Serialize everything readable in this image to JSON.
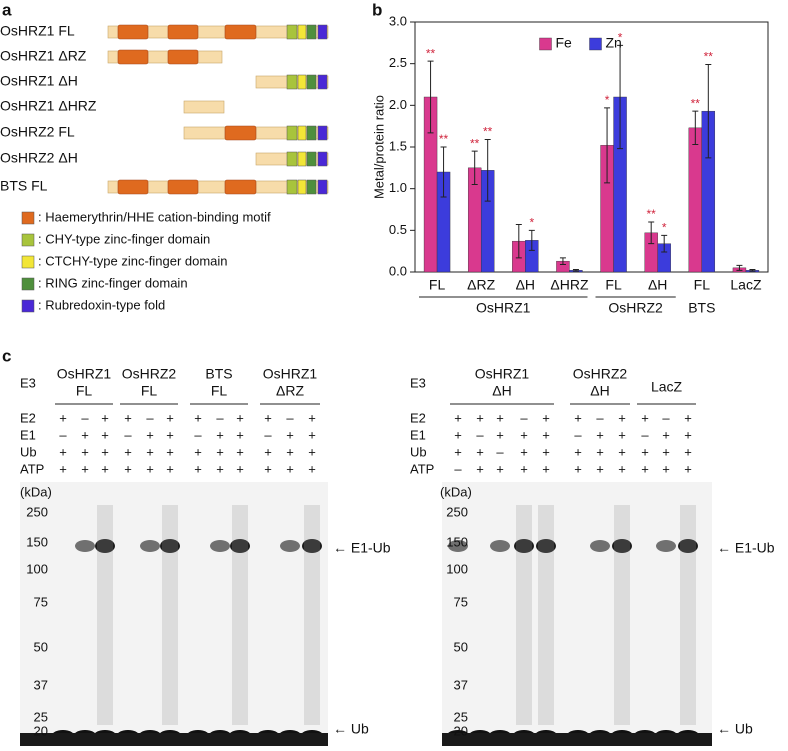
{
  "panel_labels": [
    "a",
    "b",
    "c"
  ],
  "constructs": {
    "names": [
      "OsHRZ1 FL",
      "OsHRZ1 ΔRZ",
      "OsHRZ1 ΔH",
      "OsHRZ1 ΔHRZ",
      "OsHRZ2 FL",
      "OsHRZ2 ΔH",
      "BTS FL"
    ],
    "legend": [
      {
        "label": ": Haemerythrin/HHE cation-binding motif",
        "color": "#df6a1f"
      },
      {
        "label": ": CHY-type zinc-finger domain",
        "color": "#a8c43c"
      },
      {
        "label": ": CTCHY-type zinc-finger domain",
        "color": "#f2e637"
      },
      {
        "label": ": RING zinc-finger domain",
        "color": "#4e8f3c"
      },
      {
        "label": ": Rubredoxin-type fold",
        "color": "#4a28d6"
      }
    ]
  },
  "chart_data": {
    "type": "bar",
    "ylabel": "Metal/protein ratio",
    "groups": [
      {
        "name": "OsHRZ1",
        "categories": [
          "FL",
          "ΔRZ",
          "ΔH",
          "ΔHRZ"
        ]
      },
      {
        "name": "OsHRZ2",
        "categories": [
          "FL",
          "ΔH"
        ]
      },
      {
        "name": "BTS",
        "categories": [
          "FL"
        ]
      },
      {
        "name": null,
        "categories": [
          "LacZ"
        ]
      }
    ],
    "series": [
      {
        "name": "Fe",
        "color": "#d9398e",
        "values": [
          2.1,
          1.25,
          0.37,
          0.13,
          1.52,
          0.47,
          1.73,
          0.05
        ],
        "errors": [
          0.43,
          0.2,
          0.2,
          0.04,
          0.45,
          0.13,
          0.2,
          0.03
        ],
        "significance": [
          "**",
          "**",
          null,
          null,
          "*",
          "**",
          "**",
          null
        ]
      },
      {
        "name": "Zn",
        "color": "#3c3cdc",
        "values": [
          1.2,
          1.22,
          0.38,
          0.02,
          2.1,
          0.34,
          1.93,
          0.02
        ],
        "errors": [
          0.3,
          0.37,
          0.12,
          0.01,
          0.62,
          0.1,
          0.56,
          0.01
        ],
        "significance": [
          "**",
          "**",
          "*",
          null,
          "*",
          "*",
          "**",
          null
        ]
      }
    ],
    "significance_color": "#d0243c",
    "ylim": [
      0,
      3
    ],
    "yticks": [
      {
        "value": 0,
        "label": "0.0"
      },
      0.5,
      {
        "value": 1,
        "label": "1.0"
      },
      1.5,
      {
        "value": 2,
        "label": "2.0"
      },
      2.5,
      {
        "value": 3,
        "label": "3.0"
      }
    ],
    "legend": "upper center",
    "grid": false
  },
  "blots": [
    {
      "e3_label": "E3",
      "e3": [
        {
          "name": "OsHRZ1",
          "variant": "FL"
        },
        {
          "name": "OsHRZ2",
          "variant": "FL"
        },
        {
          "name": "BTS",
          "variant": "FL"
        },
        {
          "name": "OsHRZ1",
          "variant": "ΔRZ"
        }
      ],
      "rows": [
        {
          "label": "E2",
          "signs": [
            "+",
            "–",
            "+",
            "+",
            "–",
            "+",
            "+",
            "–",
            "+",
            "+",
            "–",
            "+"
          ]
        },
        {
          "label": "E1",
          "signs": [
            "–",
            "+",
            "+",
            "–",
            "+",
            "+",
            "–",
            "+",
            "+",
            "–",
            "+",
            "+"
          ]
        },
        {
          "label": "Ub",
          "signs": [
            "+",
            "+",
            "+",
            "+",
            "+",
            "+",
            "+",
            "+",
            "+",
            "+",
            "+",
            "+"
          ]
        },
        {
          "label": "ATP",
          "signs": [
            "+",
            "+",
            "+",
            "+",
            "+",
            "+",
            "+",
            "+",
            "+",
            "+",
            "+",
            "+"
          ]
        }
      ],
      "unit": "(kDa)",
      "markers": [
        250,
        150,
        100,
        75,
        50,
        37,
        25,
        20
      ],
      "bands": [
        "← E1-Ub",
        "← Ub"
      ]
    },
    {
      "e3_label": "E3",
      "e3": [
        {
          "name": "OsHRZ1",
          "variant": "ΔH"
        },
        {
          "name": "OsHRZ2",
          "variant": "ΔH"
        },
        {
          "name": "LacZ",
          "variant": null
        }
      ],
      "rows": [
        {
          "label": "E2",
          "signs": [
            "+",
            "+",
            "+",
            "–",
            "+",
            "+",
            "–",
            "+",
            "+",
            "–",
            "+"
          ]
        },
        {
          "label": "E1",
          "signs": [
            "+",
            "–",
            "+",
            "+",
            "+",
            "–",
            "+",
            "+",
            "–",
            "+",
            "+"
          ]
        },
        {
          "label": "Ub",
          "signs": [
            "+",
            "+",
            "–",
            "+",
            "+",
            "+",
            "+",
            "+",
            "+",
            "+",
            "+"
          ]
        },
        {
          "label": "ATP",
          "signs": [
            "–",
            "+",
            "+",
            "+",
            "+",
            "+",
            "+",
            "+",
            "+",
            "+",
            "+"
          ]
        }
      ],
      "unit": "(kDa)",
      "markers": [
        250,
        150,
        100,
        75,
        50,
        37,
        25,
        20
      ],
      "bands": [
        "← E1-Ub",
        "← Ub"
      ]
    }
  ]
}
